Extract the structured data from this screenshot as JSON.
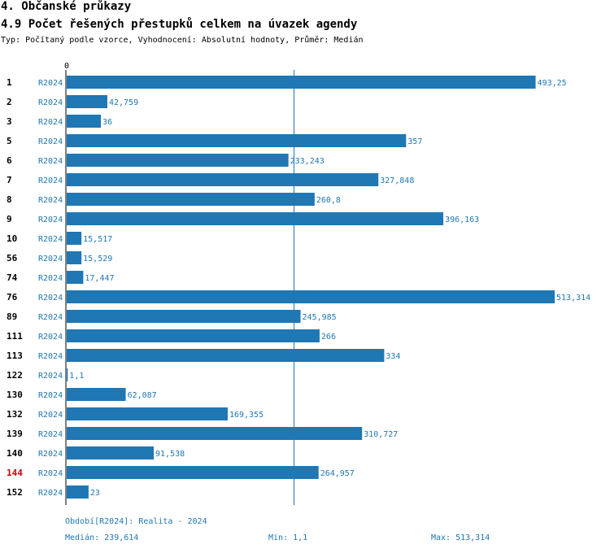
{
  "header": {
    "section": "4. Občanské průkazy",
    "chart_title": "4.9 Počet řešených přestupků celkem na úvazek agendy",
    "subtitle": "Typ: Počítaný podle vzorce, Vyhodnocení: Absolutní hodnoty, Průměr: Medián"
  },
  "colors": {
    "bar": "#1f77b4",
    "highlight": "#cc0000",
    "text": "#000000"
  },
  "chart_data": {
    "type": "bar",
    "orientation": "horizontal",
    "title": "4.9 Počet řešených přestupků celkem na úvazek agendy",
    "axis_zero_label": "0",
    "xlim": [
      0,
      513.314
    ],
    "median": 239.614,
    "series_label": "R2024",
    "highlight_category": "144",
    "categories": [
      "1",
      "2",
      "3",
      "5",
      "6",
      "7",
      "8",
      "9",
      "10",
      "56",
      "74",
      "76",
      "89",
      "111",
      "113",
      "122",
      "130",
      "132",
      "139",
      "140",
      "144",
      "152"
    ],
    "values": [
      493.25,
      42.759,
      36,
      357,
      233.243,
      327.848,
      260.8,
      396.163,
      15.517,
      15.529,
      17.447,
      513.314,
      245.985,
      266,
      334,
      1.1,
      62.087,
      169.355,
      310.727,
      91.538,
      264.957,
      23
    ],
    "value_labels": [
      "493,25",
      "42,759",
      "36",
      "357",
      "233,243",
      "327,848",
      "260,8",
      "396,163",
      "15,517",
      "15,529",
      "17,447",
      "513,314",
      "245,985",
      "266",
      "334",
      "1,1",
      "62,087",
      "169,355",
      "310,727",
      "91,538",
      "264,957",
      "23"
    ]
  },
  "footer": {
    "period": "Období[R2024]: Realita - 2024",
    "median": "Medián: 239,614",
    "min": "Min: 1,1",
    "max": "Max: 513,314"
  }
}
